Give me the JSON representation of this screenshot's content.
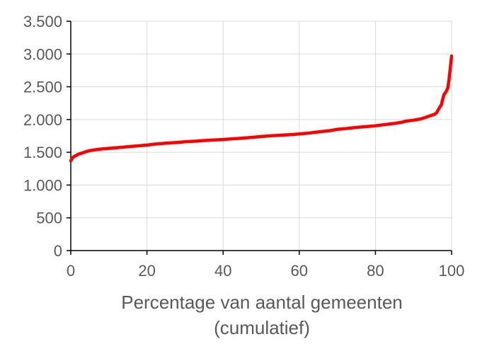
{
  "chart_data": {
    "type": "line",
    "title": "",
    "xlabel_lines": [
      "Percentage van aantal gemeenten",
      "(cumulatief)"
    ],
    "ylabel": "",
    "xlim": [
      0,
      100
    ],
    "ylim": [
      0,
      3500
    ],
    "x_ticks": [
      0,
      20,
      40,
      60,
      80,
      100
    ],
    "x_tick_labels": [
      "0",
      "20",
      "40",
      "60",
      "80",
      "100"
    ],
    "y_ticks": [
      0,
      500,
      1000,
      1500,
      2000,
      2500,
      3000,
      3500
    ],
    "y_tick_labels": [
      "0",
      "500",
      "1.000",
      "1.500",
      "2.000",
      "2.500",
      "3.000",
      "3.500"
    ],
    "grid": true,
    "legend": "none",
    "series": [
      {
        "color": "#ff0000",
        "x": [
          0,
          0.5,
          1,
          2,
          3,
          4,
          5,
          6,
          8,
          10,
          12,
          15,
          18,
          20,
          22,
          25,
          28,
          30,
          33,
          35,
          38,
          40,
          42,
          45,
          48,
          50,
          52,
          55,
          58,
          60,
          62,
          65,
          68,
          70,
          72,
          75,
          78,
          80,
          82,
          85,
          87,
          88,
          90,
          91,
          92,
          93,
          94,
          95,
          95.5,
          96,
          96.5,
          97,
          97.3,
          97.6,
          98,
          98.5,
          99,
          99.3,
          99.6,
          100
        ],
        "y": [
          1370,
          1420,
          1440,
          1470,
          1490,
          1510,
          1525,
          1535,
          1550,
          1560,
          1570,
          1585,
          1600,
          1610,
          1625,
          1640,
          1650,
          1660,
          1670,
          1680,
          1690,
          1695,
          1705,
          1715,
          1730,
          1740,
          1750,
          1760,
          1770,
          1780,
          1790,
          1810,
          1830,
          1850,
          1860,
          1880,
          1895,
          1905,
          1920,
          1940,
          1960,
          1975,
          1990,
          2000,
          2010,
          2030,
          2050,
          2070,
          2080,
          2100,
          2150,
          2200,
          2220,
          2300,
          2380,
          2420,
          2480,
          2600,
          2750,
          2970
        ]
      }
    ]
  }
}
